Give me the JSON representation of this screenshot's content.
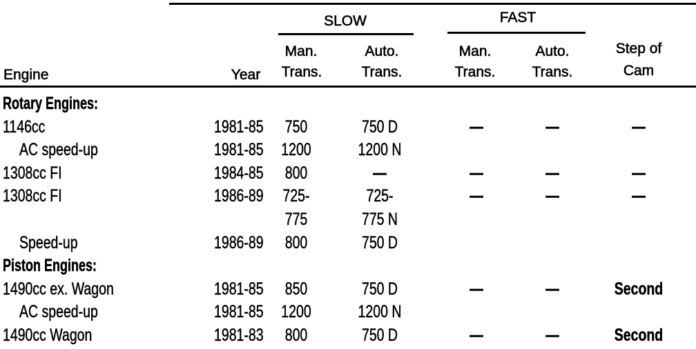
{
  "header": {
    "engine": "Engine",
    "year": "Year",
    "slow": "SLOW",
    "fast": "FAST",
    "man_line1": "Man.",
    "auto_line1": "Auto.",
    "trans_line2": "Trans.",
    "step_line1": "Step of",
    "step_line2": "Cam"
  },
  "rows": [
    {
      "engine": "Rotary Engines:",
      "group": true
    },
    {
      "engine": "1146cc",
      "year": "1981-85",
      "slow_man": "750",
      "slow_auto": "750 D",
      "fast_man": "—",
      "fast_auto": "—",
      "step": "—"
    },
    {
      "engine": "AC speed-up",
      "indent": true,
      "year": "1981-85",
      "slow_man": "1200",
      "slow_auto": "1200 N"
    },
    {
      "engine": "1308cc FI",
      "year": "1984-85",
      "slow_man": "800",
      "slow_auto": "—",
      "fast_man": "—",
      "fast_auto": "—",
      "step": "—"
    },
    {
      "engine": "1308cc FI",
      "year": "1986-89",
      "slow_man": "725-",
      "slow_auto": "725-",
      "fast_man": "—",
      "fast_auto": "—",
      "step": "—"
    },
    {
      "engine": "",
      "slow_man": "775",
      "slow_auto": "775 N"
    },
    {
      "engine": "Speed-up",
      "indent": true,
      "year": "1986-89",
      "slow_man": "800",
      "slow_auto": "750 D"
    },
    {
      "engine": "Piston Engines:",
      "group": true
    },
    {
      "engine": "1490cc ex. Wagon",
      "year": "1981-85",
      "slow_man": "850",
      "slow_auto": "750 D",
      "fast_man": "—",
      "fast_auto": "—",
      "step": "Second"
    },
    {
      "engine": "AC speed-up",
      "indent": true,
      "year": "1981-85",
      "slow_man": "1200",
      "slow_auto": "1200 N"
    },
    {
      "engine": "1490cc Wagon",
      "year": "1981-83",
      "slow_man": "800",
      "slow_auto": "750 D",
      "fast_man": "—",
      "fast_auto": "—",
      "step": "Second"
    }
  ]
}
